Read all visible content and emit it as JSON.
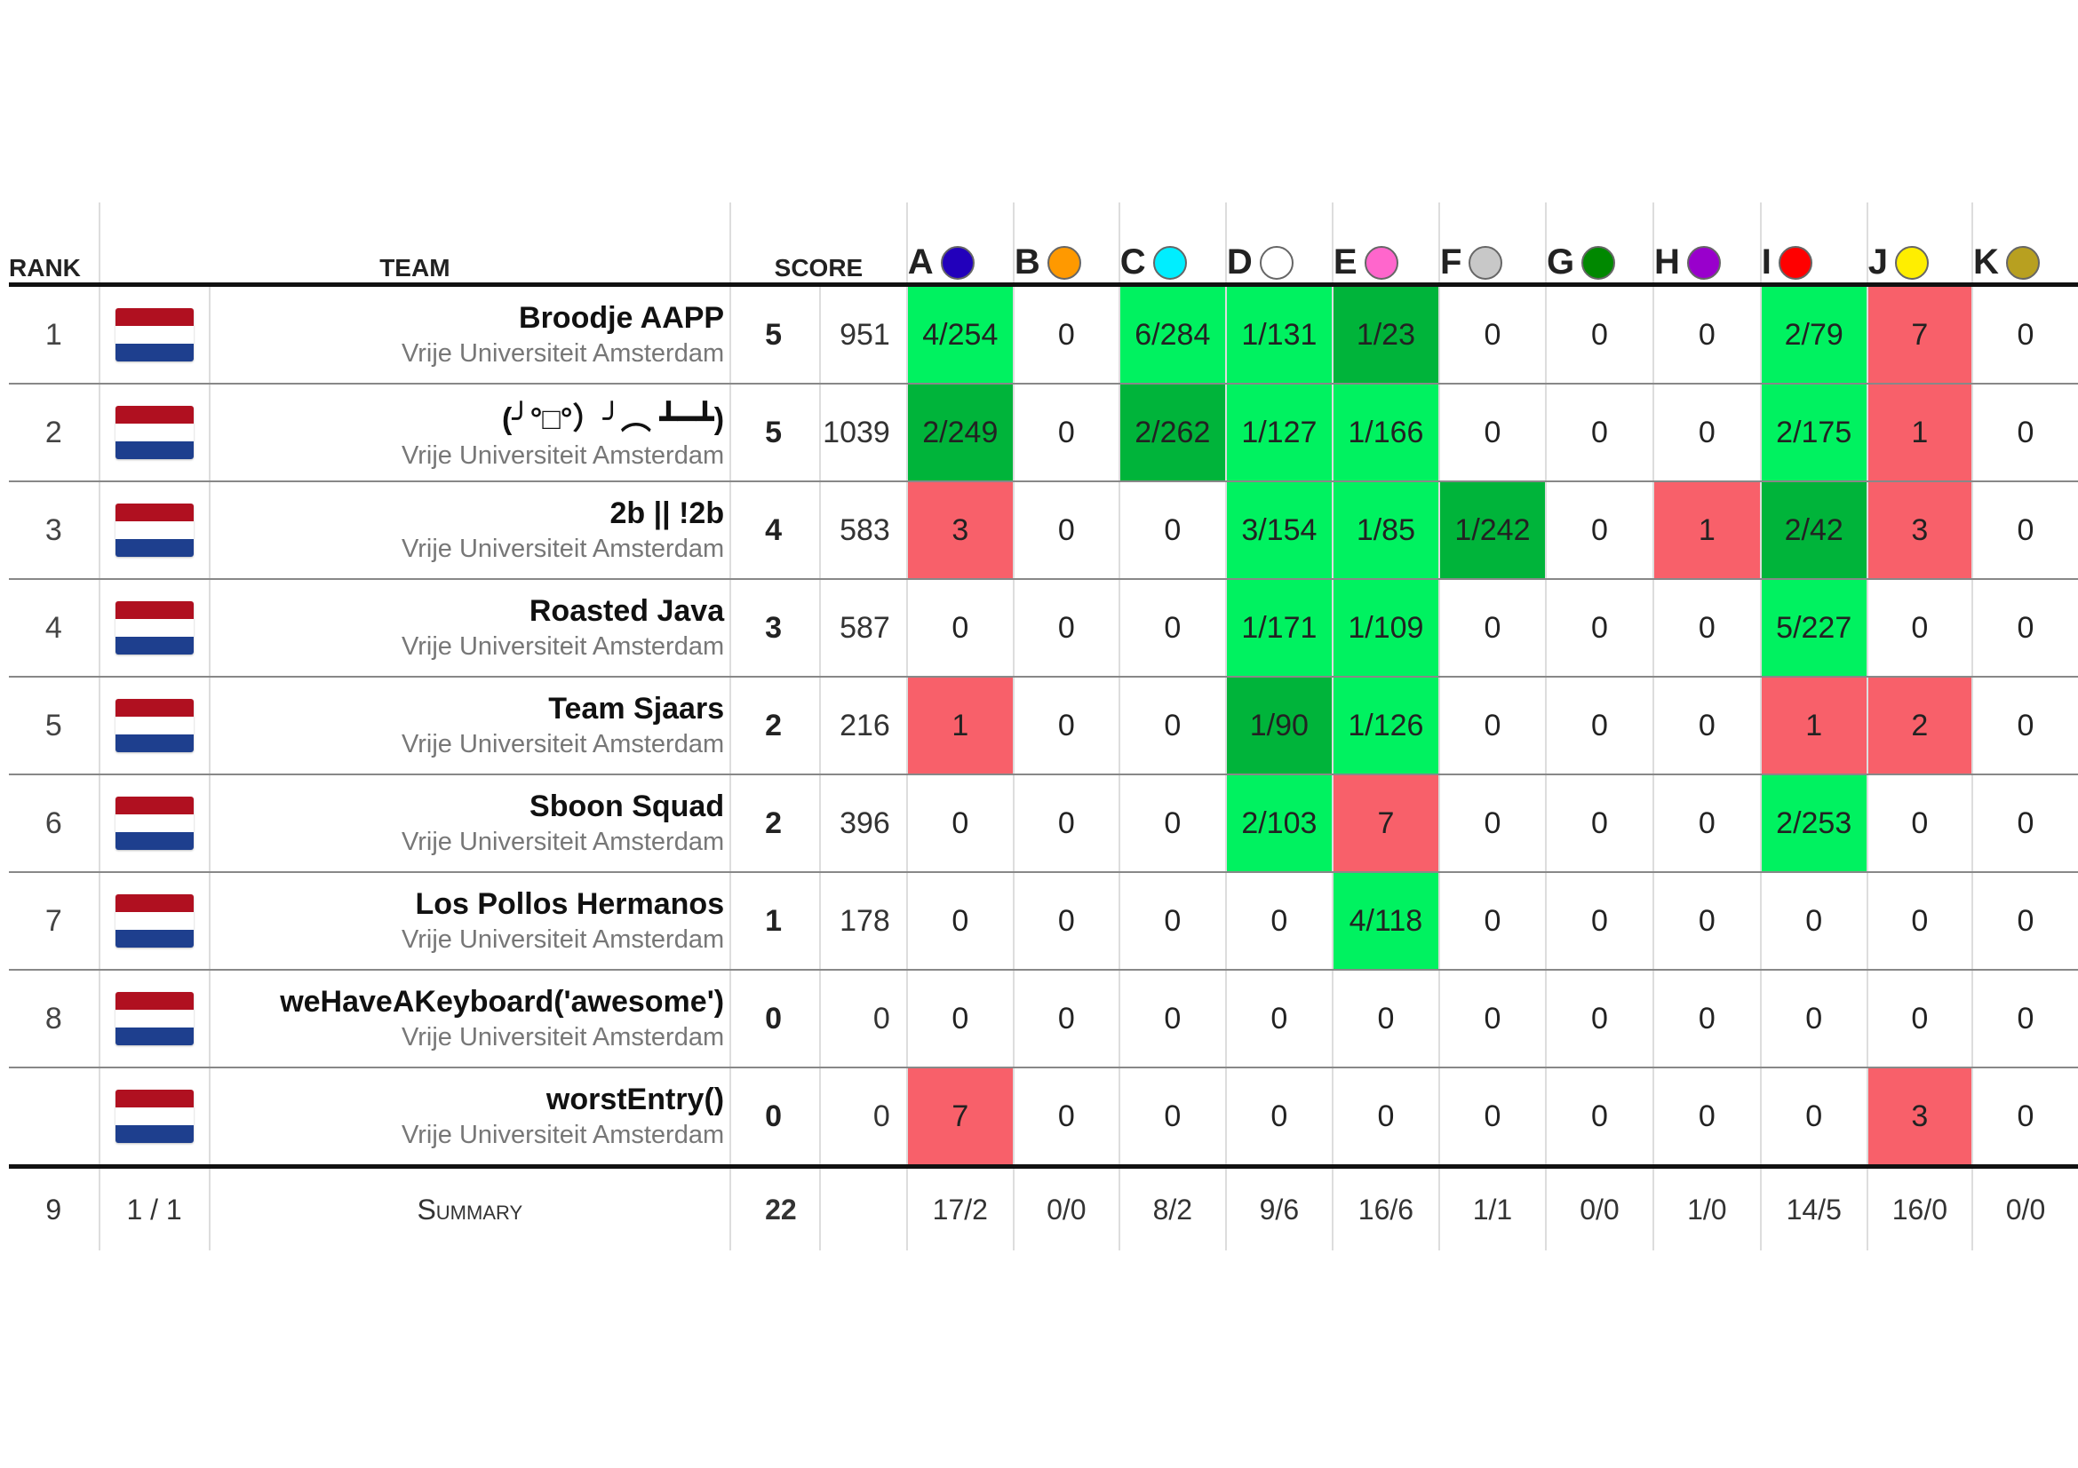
{
  "header": {
    "rank": "RANK",
    "team": "TEAM",
    "score": "SCORE",
    "problems": [
      {
        "letter": "A",
        "color": "#2200bb"
      },
      {
        "letter": "B",
        "color": "#ff9900"
      },
      {
        "letter": "C",
        "color": "#00eeff"
      },
      {
        "letter": "D",
        "color": "#ffffff"
      },
      {
        "letter": "E",
        "color": "#ff66cc"
      },
      {
        "letter": "F",
        "color": "#c8c8c8"
      },
      {
        "letter": "G",
        "color": "#008800"
      },
      {
        "letter": "H",
        "color": "#9900cc"
      },
      {
        "letter": "I",
        "color": "#ff0000"
      },
      {
        "letter": "J",
        "color": "#ffee00"
      },
      {
        "letter": "K",
        "color": "#b8a020"
      }
    ]
  },
  "colors": {
    "solved": "#00f260",
    "first_to_solve": "#00b43a",
    "failed": "#f8606a",
    "flag_red": "#b01020",
    "flag_white": "#ffffff",
    "flag_blue": "#1e3f8e"
  },
  "teams": [
    {
      "rank": "1",
      "name": "Broodje AAPP",
      "affiliation": "Vrije Universiteit Amsterdam",
      "solved": "5",
      "time": "951",
      "problems": [
        [
          "4/254",
          "solved"
        ],
        [
          "0",
          ""
        ],
        [
          "6/284",
          "solved"
        ],
        [
          "1/131",
          "solved"
        ],
        [
          "1/23",
          "first"
        ],
        [
          "0",
          ""
        ],
        [
          "0",
          ""
        ],
        [
          "0",
          ""
        ],
        [
          "2/79",
          "solved"
        ],
        [
          "7",
          "fail"
        ],
        [
          "0",
          ""
        ]
      ]
    },
    {
      "rank": "2",
      "name": "(╯°□°）╯︵ ┻━┻)",
      "affiliation": "Vrije Universiteit Amsterdam",
      "solved": "5",
      "time": "1039",
      "problems": [
        [
          "2/249",
          "first"
        ],
        [
          "0",
          ""
        ],
        [
          "2/262",
          "first"
        ],
        [
          "1/127",
          "solved"
        ],
        [
          "1/166",
          "solved"
        ],
        [
          "0",
          ""
        ],
        [
          "0",
          ""
        ],
        [
          "0",
          ""
        ],
        [
          "2/175",
          "solved"
        ],
        [
          "1",
          "fail"
        ],
        [
          "0",
          ""
        ]
      ]
    },
    {
      "rank": "3",
      "name": "2b || !2b",
      "affiliation": "Vrije Universiteit Amsterdam",
      "solved": "4",
      "time": "583",
      "problems": [
        [
          "3",
          "fail"
        ],
        [
          "0",
          ""
        ],
        [
          "0",
          ""
        ],
        [
          "3/154",
          "solved"
        ],
        [
          "1/85",
          "solved"
        ],
        [
          "1/242",
          "first"
        ],
        [
          "0",
          ""
        ],
        [
          "1",
          "fail"
        ],
        [
          "2/42",
          "first"
        ],
        [
          "3",
          "fail"
        ],
        [
          "0",
          ""
        ]
      ]
    },
    {
      "rank": "4",
      "name": "Roasted Java",
      "affiliation": "Vrije Universiteit Amsterdam",
      "solved": "3",
      "time": "587",
      "problems": [
        [
          "0",
          ""
        ],
        [
          "0",
          ""
        ],
        [
          "0",
          ""
        ],
        [
          "1/171",
          "solved"
        ],
        [
          "1/109",
          "solved"
        ],
        [
          "0",
          ""
        ],
        [
          "0",
          ""
        ],
        [
          "0",
          ""
        ],
        [
          "5/227",
          "solved"
        ],
        [
          "0",
          ""
        ],
        [
          "0",
          ""
        ]
      ]
    },
    {
      "rank": "5",
      "name": "Team Sjaars",
      "affiliation": "Vrije Universiteit Amsterdam",
      "solved": "2",
      "time": "216",
      "problems": [
        [
          "1",
          "fail"
        ],
        [
          "0",
          ""
        ],
        [
          "0",
          ""
        ],
        [
          "1/90",
          "first"
        ],
        [
          "1/126",
          "solved"
        ],
        [
          "0",
          ""
        ],
        [
          "0",
          ""
        ],
        [
          "0",
          ""
        ],
        [
          "1",
          "fail"
        ],
        [
          "2",
          "fail"
        ],
        [
          "0",
          ""
        ]
      ]
    },
    {
      "rank": "6",
      "name": "Sboon Squad",
      "affiliation": "Vrije Universiteit Amsterdam",
      "solved": "2",
      "time": "396",
      "problems": [
        [
          "0",
          ""
        ],
        [
          "0",
          ""
        ],
        [
          "0",
          ""
        ],
        [
          "2/103",
          "solved"
        ],
        [
          "7",
          "fail"
        ],
        [
          "0",
          ""
        ],
        [
          "0",
          ""
        ],
        [
          "0",
          ""
        ],
        [
          "2/253",
          "solved"
        ],
        [
          "0",
          ""
        ],
        [
          "0",
          ""
        ]
      ]
    },
    {
      "rank": "7",
      "name": "Los Pollos Hermanos",
      "affiliation": "Vrije Universiteit Amsterdam",
      "solved": "1",
      "time": "178",
      "problems": [
        [
          "0",
          ""
        ],
        [
          "0",
          ""
        ],
        [
          "0",
          ""
        ],
        [
          "0",
          ""
        ],
        [
          "4/118",
          "solved"
        ],
        [
          "0",
          ""
        ],
        [
          "0",
          ""
        ],
        [
          "0",
          ""
        ],
        [
          "0",
          ""
        ],
        [
          "0",
          ""
        ],
        [
          "0",
          ""
        ]
      ]
    },
    {
      "rank": "8",
      "name": "weHaveAKeyboard('awesome')",
      "affiliation": "Vrije Universiteit Amsterdam",
      "solved": "0",
      "time": "0",
      "problems": [
        [
          "0",
          ""
        ],
        [
          "0",
          ""
        ],
        [
          "0",
          ""
        ],
        [
          "0",
          ""
        ],
        [
          "0",
          ""
        ],
        [
          "0",
          ""
        ],
        [
          "0",
          ""
        ],
        [
          "0",
          ""
        ],
        [
          "0",
          ""
        ],
        [
          "0",
          ""
        ],
        [
          "0",
          ""
        ]
      ]
    },
    {
      "rank": "",
      "name": "worstEntry()",
      "affiliation": "Vrije Universiteit Amsterdam",
      "solved": "0",
      "time": "0",
      "problems": [
        [
          "7",
          "fail"
        ],
        [
          "0",
          ""
        ],
        [
          "0",
          ""
        ],
        [
          "0",
          ""
        ],
        [
          "0",
          ""
        ],
        [
          "0",
          ""
        ],
        [
          "0",
          ""
        ],
        [
          "0",
          ""
        ],
        [
          "0",
          ""
        ],
        [
          "3",
          "fail"
        ],
        [
          "0",
          ""
        ]
      ]
    }
  ],
  "summary": {
    "teams_count": "9",
    "affiliations": "1 / 1",
    "label": "Summary",
    "solved": "22",
    "problems": [
      "17/2",
      "0/0",
      "8/2",
      "9/6",
      "16/6",
      "1/1",
      "0/0",
      "1/0",
      "14/5",
      "16/0",
      "0/0"
    ]
  }
}
